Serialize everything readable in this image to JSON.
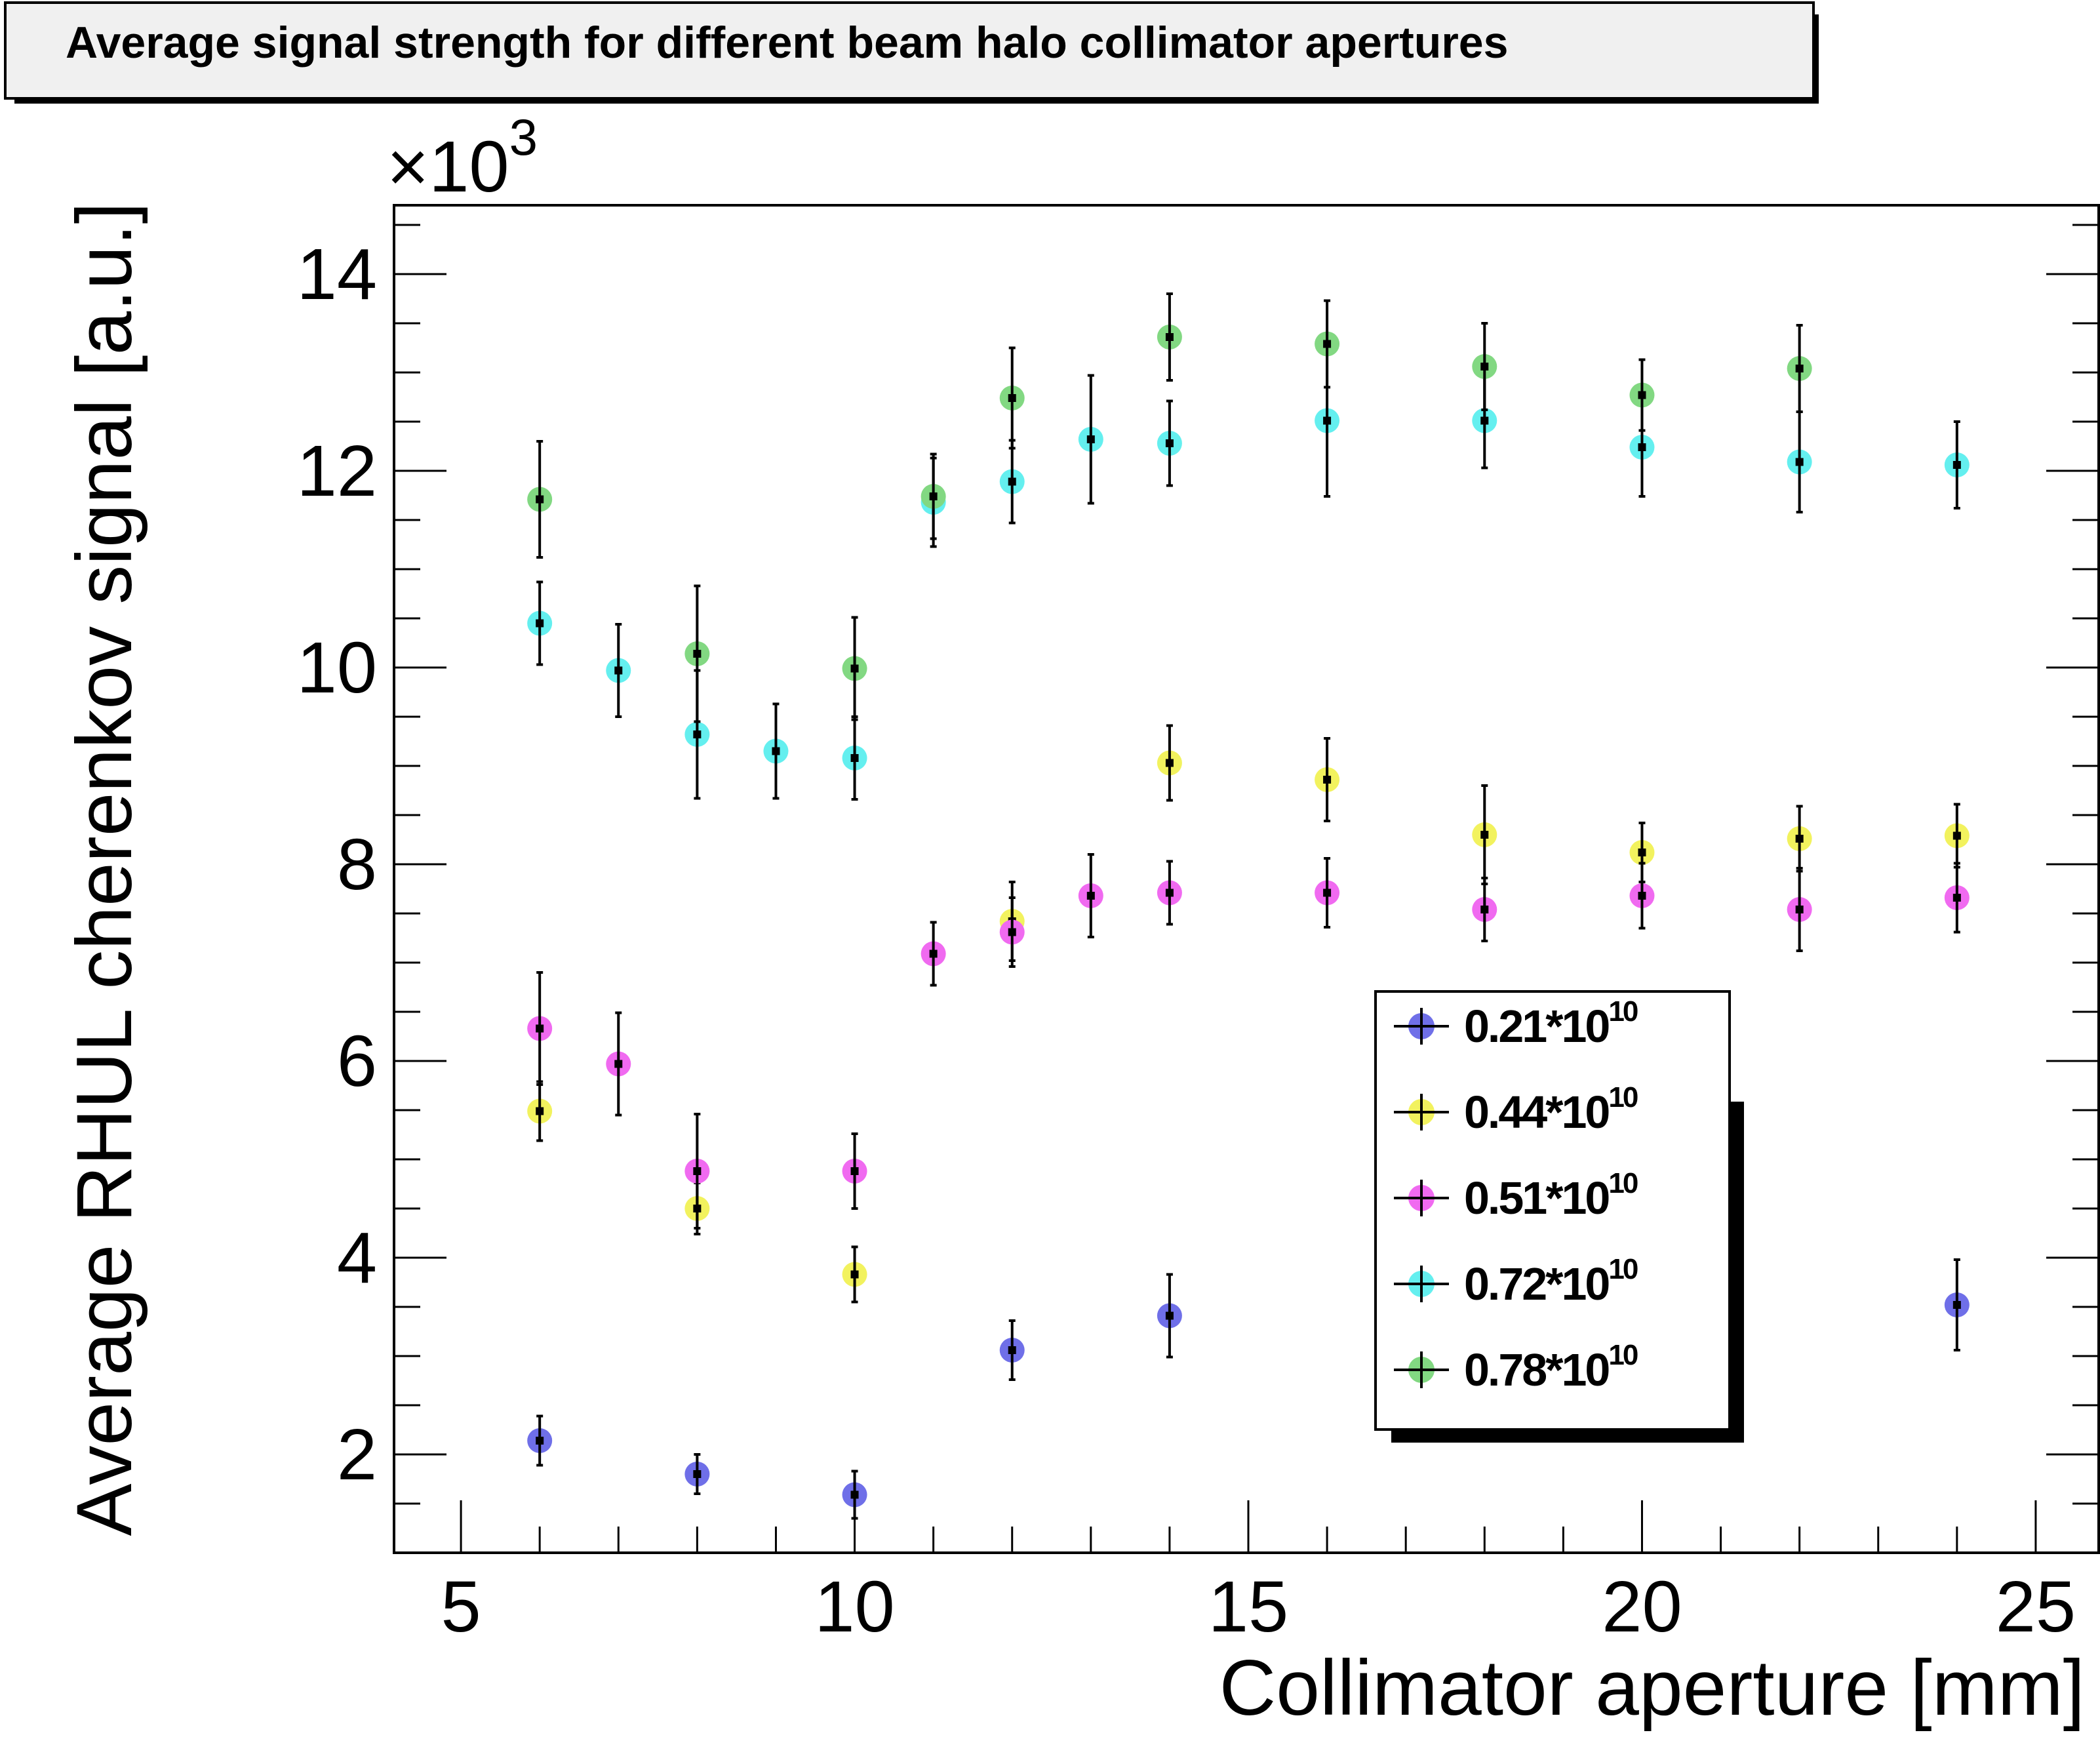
{
  "chart_data": {
    "type": "scatter",
    "title": "Average signal strength for different beam halo collimator apertures",
    "xlabel": "Collimator aperture [mm]",
    "ylabel": "Average RHUL cherenkov signal [a.u.]",
    "y_multiplier": "×10",
    "y_multiplier_exp": "3",
    "xlim": [
      4.15,
      25.8
    ],
    "ylim": [
      1000,
      14700
    ],
    "x_ticks": [
      5,
      10,
      15,
      20,
      25
    ],
    "x_tick_labels": [
      "5",
      "10",
      "15",
      "20",
      "25"
    ],
    "y_ticks": [
      2000,
      4000,
      6000,
      8000,
      10000,
      12000,
      14000
    ],
    "y_tick_labels": [
      "2",
      "4",
      "6",
      "8",
      "10",
      "12",
      "14"
    ],
    "grid": false,
    "legend_position": "bottom-right",
    "series": [
      {
        "name": "0.21*10",
        "name_exp": "10",
        "color": "#6f6fe8",
        "points": [
          {
            "x": 6,
            "y": 2140,
            "err": 250
          },
          {
            "x": 8,
            "y": 1800,
            "err": 200
          },
          {
            "x": 10,
            "y": 1590,
            "err": 240
          },
          {
            "x": 12,
            "y": 3060,
            "err": 300
          },
          {
            "x": 14,
            "y": 3410,
            "err": 420
          },
          {
            "x": 24,
            "y": 3520,
            "err": 460
          }
        ]
      },
      {
        "name": "0.44*10",
        "name_exp": "10",
        "color": "#f2f25e",
        "points": [
          {
            "x": 6,
            "y": 5490,
            "err": 300
          },
          {
            "x": 8,
            "y": 4500,
            "err": 260
          },
          {
            "x": 10,
            "y": 3830,
            "err": 280
          },
          {
            "x": 12,
            "y": 7420,
            "err": 400
          },
          {
            "x": 14,
            "y": 9030,
            "err": 380
          },
          {
            "x": 16,
            "y": 8860,
            "err": 420
          },
          {
            "x": 18,
            "y": 8300,
            "err": 500
          },
          {
            "x": 20,
            "y": 8120,
            "err": 300
          },
          {
            "x": 22,
            "y": 8260,
            "err": 330
          },
          {
            "x": 24,
            "y": 8290,
            "err": 320
          }
        ]
      },
      {
        "name": "0.51*10",
        "name_exp": "10",
        "color": "#f06af0",
        "points": [
          {
            "x": 6,
            "y": 6330,
            "err": 570
          },
          {
            "x": 7,
            "y": 5970,
            "err": 520
          },
          {
            "x": 8,
            "y": 4880,
            "err": 580
          },
          {
            "x": 10,
            "y": 4880,
            "err": 380
          },
          {
            "x": 11,
            "y": 7090,
            "err": 320
          },
          {
            "x": 12,
            "y": 7310,
            "err": 350
          },
          {
            "x": 13,
            "y": 7680,
            "err": 420
          },
          {
            "x": 14,
            "y": 7710,
            "err": 320
          },
          {
            "x": 16,
            "y": 7710,
            "err": 350
          },
          {
            "x": 18,
            "y": 7540,
            "err": 320
          },
          {
            "x": 20,
            "y": 7680,
            "err": 330
          },
          {
            "x": 22,
            "y": 7540,
            "err": 420
          },
          {
            "x": 24,
            "y": 7660,
            "err": 350
          }
        ]
      },
      {
        "name": "0.72*10",
        "name_exp": "10",
        "color": "#64efef",
        "points": [
          {
            "x": 6,
            "y": 10450,
            "err": 420
          },
          {
            "x": 7,
            "y": 9970,
            "err": 470
          },
          {
            "x": 8,
            "y": 9320,
            "err": 650
          },
          {
            "x": 9,
            "y": 9150,
            "err": 480
          },
          {
            "x": 10,
            "y": 9080,
            "err": 420
          },
          {
            "x": 11,
            "y": 11680,
            "err": 450
          },
          {
            "x": 12,
            "y": 11890,
            "err": 420
          },
          {
            "x": 13,
            "y": 12320,
            "err": 650
          },
          {
            "x": 14,
            "y": 12280,
            "err": 430
          },
          {
            "x": 16,
            "y": 12510,
            "err": 770
          },
          {
            "x": 18,
            "y": 12510,
            "err": 480
          },
          {
            "x": 20,
            "y": 12240,
            "err": 500
          },
          {
            "x": 22,
            "y": 12090,
            "err": 510
          },
          {
            "x": 24,
            "y": 12060,
            "err": 440
          }
        ]
      },
      {
        "name": "0.78*10",
        "name_exp": "10",
        "color": "#82d882",
        "points": [
          {
            "x": 6,
            "y": 11710,
            "err": 590
          },
          {
            "x": 8,
            "y": 10140,
            "err": 690
          },
          {
            "x": 10,
            "y": 9990,
            "err": 520
          },
          {
            "x": 11,
            "y": 11740,
            "err": 430
          },
          {
            "x": 12,
            "y": 12740,
            "err": 510
          },
          {
            "x": 14,
            "y": 13360,
            "err": 440
          },
          {
            "x": 16,
            "y": 13290,
            "err": 440
          },
          {
            "x": 18,
            "y": 13060,
            "err": 440
          },
          {
            "x": 20,
            "y": 12770,
            "err": 360
          },
          {
            "x": 22,
            "y": 13040,
            "err": 440
          }
        ]
      }
    ]
  }
}
